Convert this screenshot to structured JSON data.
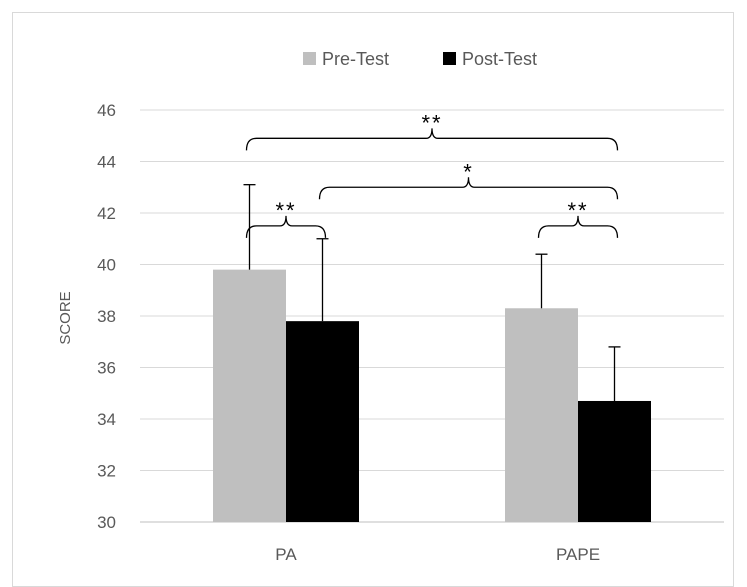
{
  "chart_data": {
    "type": "bar",
    "title": "",
    "xlabel": "",
    "ylabel": "SCORE",
    "ylim": [
      30,
      46
    ],
    "yticks": [
      30,
      32,
      34,
      36,
      38,
      40,
      42,
      44,
      46
    ],
    "grid": true,
    "legend_position": "top-center",
    "categories": [
      "PA",
      "PAPE"
    ],
    "series": [
      {
        "name": "Pre-Test",
        "color": "#bfbfbf",
        "values": [
          39.8,
          38.3
        ],
        "errors": [
          3.3,
          2.1
        ]
      },
      {
        "name": "Post-Test",
        "color": "#000000",
        "values": [
          37.8,
          34.7
        ],
        "errors": [
          3.2,
          2.1
        ]
      }
    ],
    "annotations": [
      {
        "label": "**",
        "from": [
          0,
          0
        ],
        "to": [
          1,
          1
        ],
        "level": 44.9
      },
      {
        "label": "*",
        "from": [
          0,
          1
        ],
        "to": [
          1,
          1
        ],
        "level": 43.0
      },
      {
        "label": "**",
        "from": [
          0,
          0
        ],
        "to": [
          0,
          1
        ],
        "level": 41.5
      },
      {
        "label": "**",
        "from": [
          1,
          0
        ],
        "to": [
          1,
          1
        ],
        "level": 41.5
      }
    ]
  }
}
